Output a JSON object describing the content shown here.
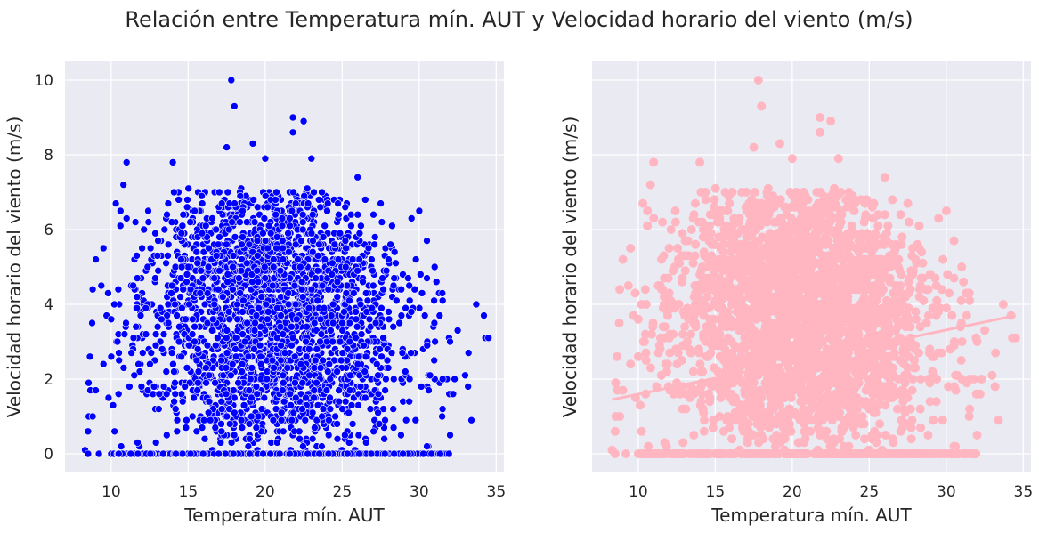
{
  "figure": {
    "title": "Relación entre Temperatura mín. AUT y Velocidad horario del viento (m/s)"
  },
  "colors": {
    "background": "#eaeaf2",
    "grid": "#ffffff",
    "left_markers": "#0000ff",
    "right_markers": "#ffb6c1"
  },
  "chart_data": [
    {
      "type": "scatter",
      "panel": "left",
      "xlabel": "Temperatura mín. AUT",
      "ylabel": "Velocidad horario del viento (m/s)",
      "xlim": [
        7,
        35.5
      ],
      "ylim": [
        -0.5,
        10.5
      ],
      "xticks": [
        10,
        15,
        20,
        25,
        30,
        35
      ],
      "yticks": [
        0,
        2,
        4,
        6,
        8,
        10
      ],
      "grid": true,
      "marker_color": "#0000ff",
      "marker_edge": "white",
      "bulk_region": {
        "x_range": [
          8.5,
          34.5
        ],
        "y_range": [
          0,
          7.5
        ],
        "description_points": "dense cloud of several thousand observations"
      },
      "points": [
        [
          17.8,
          10.0
        ],
        [
          18.0,
          9.3
        ],
        [
          21.8,
          9.0
        ],
        [
          22.5,
          8.9
        ],
        [
          21.8,
          8.6
        ],
        [
          17.5,
          8.2
        ],
        [
          19.2,
          8.3
        ],
        [
          20.0,
          7.9
        ],
        [
          23.0,
          7.9
        ],
        [
          14.0,
          7.8
        ],
        [
          11.0,
          7.8
        ],
        [
          10.8,
          7.2
        ],
        [
          10.3,
          6.7
        ],
        [
          10.6,
          6.5
        ],
        [
          11.0,
          6.3
        ],
        [
          9.5,
          5.5
        ],
        [
          9.0,
          5.2
        ],
        [
          8.8,
          4.4
        ],
        [
          9.8,
          4.3
        ],
        [
          10.2,
          4.0
        ],
        [
          10.0,
          3.6
        ],
        [
          9.5,
          2.4
        ],
        [
          10.0,
          2.6
        ],
        [
          9.0,
          1.7
        ],
        [
          8.8,
          1.0
        ],
        [
          8.5,
          0.6
        ],
        [
          8.3,
          0.1
        ],
        [
          8.5,
          0.0
        ],
        [
          9.2,
          0.0
        ],
        [
          30.0,
          6.5
        ],
        [
          29.5,
          6.3
        ],
        [
          30.5,
          5.7
        ],
        [
          31.0,
          5.0
        ],
        [
          31.5,
          4.3
        ],
        [
          32.0,
          3.0
        ],
        [
          32.5,
          3.3
        ],
        [
          33.2,
          2.7
        ],
        [
          33.7,
          4.0
        ],
        [
          34.2,
          3.7
        ],
        [
          34.3,
          3.1
        ],
        [
          34.5,
          3.1
        ],
        [
          32.3,
          2.0
        ],
        [
          32.2,
          1.6
        ],
        [
          32.0,
          0.5
        ],
        [
          30.8,
          0.0
        ],
        [
          30.5,
          0.2
        ],
        [
          26.0,
          7.4
        ],
        [
          25.2,
          6.6
        ],
        [
          26.5,
          6.8
        ],
        [
          27.5,
          6.7
        ]
      ]
    },
    {
      "type": "scatter",
      "panel": "right",
      "xlabel": "Temperatura mín. AUT",
      "ylabel": "Velocidad horario del viento (m/s)",
      "xlim": [
        7,
        35.5
      ],
      "ylim": [
        -0.5,
        10.5
      ],
      "xticks": [
        10,
        15,
        20,
        25,
        30,
        35
      ],
      "yticks": [
        0,
        2,
        4,
        6,
        8,
        10
      ],
      "show_yticklabels": false,
      "grid": true,
      "marker_color": "#ffb6c1",
      "regression_line": {
        "x": [
          8.3,
          34.5
        ],
        "y": [
          1.45,
          3.7
        ]
      },
      "bulk_region": {
        "x_range": [
          8.5,
          34.5
        ],
        "y_range": [
          0,
          7.5
        ]
      },
      "points": [
        [
          17.8,
          10.0
        ],
        [
          18.0,
          9.3
        ],
        [
          21.8,
          9.0
        ],
        [
          22.5,
          8.9
        ],
        [
          21.8,
          8.6
        ],
        [
          17.5,
          8.2
        ],
        [
          19.2,
          8.3
        ],
        [
          20.0,
          7.9
        ],
        [
          23.0,
          7.9
        ],
        [
          14.0,
          7.8
        ],
        [
          11.0,
          7.8
        ],
        [
          10.8,
          7.2
        ],
        [
          10.3,
          6.7
        ],
        [
          10.6,
          6.5
        ],
        [
          11.0,
          6.3
        ],
        [
          9.5,
          5.5
        ],
        [
          9.0,
          5.2
        ],
        [
          8.8,
          4.4
        ],
        [
          9.8,
          4.3
        ],
        [
          10.2,
          4.0
        ],
        [
          10.0,
          3.6
        ],
        [
          9.5,
          2.4
        ],
        [
          10.0,
          2.6
        ],
        [
          9.0,
          1.7
        ],
        [
          8.8,
          1.0
        ],
        [
          8.5,
          0.6
        ],
        [
          8.3,
          0.1
        ],
        [
          8.5,
          0.0
        ],
        [
          9.2,
          0.0
        ],
        [
          30.0,
          6.5
        ],
        [
          29.5,
          6.3
        ],
        [
          30.5,
          5.7
        ],
        [
          31.0,
          5.0
        ],
        [
          31.5,
          4.3
        ],
        [
          32.0,
          3.0
        ],
        [
          32.5,
          3.3
        ],
        [
          33.2,
          2.7
        ],
        [
          33.7,
          4.0
        ],
        [
          34.2,
          3.7
        ],
        [
          34.3,
          3.1
        ],
        [
          34.5,
          3.1
        ],
        [
          32.3,
          2.0
        ],
        [
          32.2,
          1.6
        ],
        [
          32.0,
          0.5
        ],
        [
          30.8,
          0.0
        ],
        [
          30.5,
          0.2
        ],
        [
          26.0,
          7.4
        ],
        [
          25.2,
          6.6
        ],
        [
          26.5,
          6.8
        ],
        [
          27.5,
          6.7
        ]
      ]
    }
  ]
}
